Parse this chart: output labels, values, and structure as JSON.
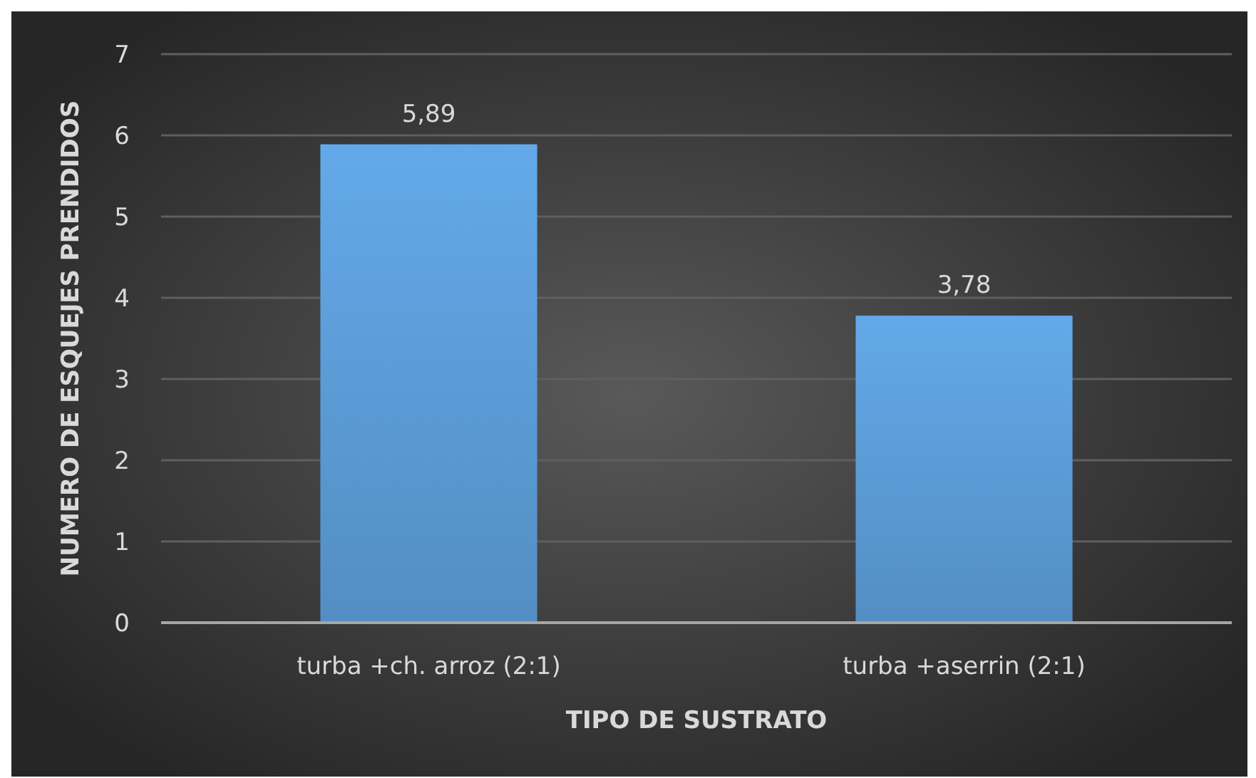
{
  "chart_data": {
    "type": "bar",
    "xlabel": "TIPO DE SUSTRATO",
    "ylabel": "NUMERO DE ESQUEJES PRENDIDOS",
    "categories": [
      "turba +ch. arroz (2:1)",
      "turba +aserrin (2:1)"
    ],
    "values": [
      5.89,
      3.78
    ],
    "color": "#5b9bd5",
    "value_labels": [
      "5,89",
      "3,78"
    ],
    "ylim": [
      0,
      7
    ],
    "yticks": [
      0,
      1,
      2,
      3,
      4,
      5,
      6,
      7
    ],
    "grid": "y"
  }
}
